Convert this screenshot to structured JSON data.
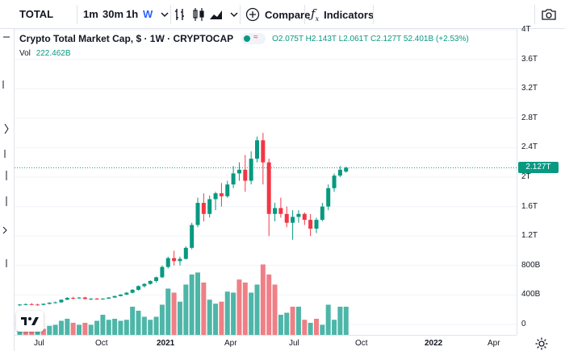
{
  "toolbar": {
    "symbol": "TOTAL",
    "intervals": [
      "1m",
      "30m",
      "1h",
      "W"
    ],
    "active_interval": "W",
    "compare_label": "Compare",
    "indicators_label": "Indicators"
  },
  "legend": {
    "title": "Crypto Total Market Cap, $ · 1W · CRYPTOCAP",
    "open": "O2.075T",
    "high": "H2.143T",
    "low": "L2.061T",
    "close": "C2.127T",
    "change": "52.401B (+2.53%)",
    "vol_label": "Vol",
    "vol_value": "222.462B"
  },
  "last_price_label": "2.127T",
  "colors": {
    "up": "#26a69a",
    "up_candle": "#089981",
    "down": "#f23645",
    "vol_up": "#4db6a8",
    "vol_down": "#ef7f86",
    "accent": "#2962ff"
  },
  "chart_data": {
    "type": "candlestick",
    "price_axis_ticks": [
      "4T",
      "3.6T",
      "3.2T",
      "2.8T",
      "2.4T",
      "2T",
      "1.6T",
      "1.2T",
      "800B",
      "400B",
      "0"
    ],
    "time_axis_ticks": [
      "Jul",
      "Oct",
      "2021",
      "Apr",
      "Jul",
      "Oct",
      "2022",
      "Apr"
    ],
    "last_price": 2.127,
    "candles": [
      [
        0.265,
        0.275,
        0.25,
        0.27
      ],
      [
        0.27,
        0.285,
        0.26,
        0.275
      ],
      [
        0.275,
        0.29,
        0.265,
        0.27
      ],
      [
        0.27,
        0.28,
        0.255,
        0.265
      ],
      [
        0.265,
        0.285,
        0.26,
        0.28
      ],
      [
        0.28,
        0.3,
        0.27,
        0.295
      ],
      [
        0.295,
        0.31,
        0.285,
        0.3
      ],
      [
        0.3,
        0.34,
        0.295,
        0.335
      ],
      [
        0.335,
        0.37,
        0.33,
        0.36
      ],
      [
        0.36,
        0.375,
        0.34,
        0.355
      ],
      [
        0.355,
        0.37,
        0.345,
        0.365
      ],
      [
        0.365,
        0.375,
        0.34,
        0.345
      ],
      [
        0.345,
        0.355,
        0.33,
        0.35
      ],
      [
        0.35,
        0.36,
        0.335,
        0.34
      ],
      [
        0.34,
        0.355,
        0.335,
        0.35
      ],
      [
        0.35,
        0.37,
        0.345,
        0.365
      ],
      [
        0.365,
        0.39,
        0.36,
        0.385
      ],
      [
        0.385,
        0.41,
        0.38,
        0.405
      ],
      [
        0.405,
        0.44,
        0.4,
        0.43
      ],
      [
        0.43,
        0.48,
        0.42,
        0.47
      ],
      [
        0.47,
        0.53,
        0.46,
        0.52
      ],
      [
        0.52,
        0.56,
        0.5,
        0.55
      ],
      [
        0.55,
        0.6,
        0.54,
        0.59
      ],
      [
        0.59,
        0.65,
        0.57,
        0.64
      ],
      [
        0.64,
        0.8,
        0.63,
        0.78
      ],
      [
        0.78,
        0.92,
        0.76,
        0.9
      ],
      [
        0.9,
        1.0,
        0.8,
        0.86
      ],
      [
        0.86,
        0.92,
        0.8,
        0.89
      ],
      [
        0.89,
        1.06,
        0.88,
        1.04
      ],
      [
        1.04,
        1.38,
        1.02,
        1.35
      ],
      [
        1.35,
        1.72,
        1.32,
        1.65
      ],
      [
        1.65,
        1.78,
        1.4,
        1.5
      ],
      [
        1.5,
        1.75,
        1.45,
        1.7
      ],
      [
        1.7,
        1.8,
        1.55,
        1.78
      ],
      [
        1.78,
        1.92,
        1.6,
        1.74
      ],
      [
        1.74,
        1.95,
        1.72,
        1.9
      ],
      [
        1.9,
        2.15,
        1.85,
        2.05
      ],
      [
        2.05,
        2.2,
        1.95,
        2.1
      ],
      [
        2.1,
        2.3,
        1.8,
        1.95
      ],
      [
        1.95,
        2.35,
        1.9,
        2.25
      ],
      [
        2.25,
        2.55,
        2.2,
        2.5
      ],
      [
        2.5,
        2.6,
        1.9,
        2.2
      ],
      [
        2.2,
        2.25,
        1.2,
        1.5
      ],
      [
        1.5,
        1.65,
        1.4,
        1.58
      ],
      [
        1.58,
        1.72,
        1.45,
        1.5
      ],
      [
        1.5,
        1.6,
        1.32,
        1.38
      ],
      [
        1.38,
        1.55,
        1.15,
        1.46
      ],
      [
        1.46,
        1.55,
        1.38,
        1.5
      ],
      [
        1.5,
        1.52,
        1.35,
        1.42
      ],
      [
        1.42,
        1.5,
        1.2,
        1.3
      ],
      [
        1.3,
        1.45,
        1.24,
        1.42
      ],
      [
        1.42,
        1.65,
        1.4,
        1.6
      ],
      [
        1.6,
        1.9,
        1.55,
        1.85
      ],
      [
        1.85,
        2.05,
        1.8,
        2.02
      ],
      [
        2.02,
        2.15,
        2.0,
        2.1
      ],
      [
        2.075,
        2.143,
        2.061,
        2.127
      ]
    ],
    "volumes": [
      [
        0.14,
        1
      ],
      [
        0.1,
        0
      ],
      [
        0.08,
        0
      ],
      [
        0.06,
        1
      ],
      [
        0.06,
        0
      ],
      [
        0.09,
        1
      ],
      [
        0.1,
        1
      ],
      [
        0.14,
        1
      ],
      [
        0.16,
        1
      ],
      [
        0.12,
        0
      ],
      [
        0.1,
        1
      ],
      [
        0.12,
        0
      ],
      [
        0.1,
        1
      ],
      [
        0.14,
        1
      ],
      [
        0.2,
        1
      ],
      [
        0.15,
        1
      ],
      [
        0.16,
        1
      ],
      [
        0.14,
        1
      ],
      [
        0.15,
        1
      ],
      [
        0.28,
        1
      ],
      [
        0.24,
        1
      ],
      [
        0.18,
        1
      ],
      [
        0.15,
        1
      ],
      [
        0.18,
        1
      ],
      [
        0.3,
        1
      ],
      [
        0.46,
        1
      ],
      [
        0.42,
        0
      ],
      [
        0.33,
        1
      ],
      [
        0.5,
        1
      ],
      [
        0.6,
        1
      ],
      [
        0.62,
        1
      ],
      [
        0.52,
        0
      ],
      [
        0.35,
        1
      ],
      [
        0.31,
        1
      ],
      [
        0.33,
        0
      ],
      [
        0.43,
        1
      ],
      [
        0.42,
        1
      ],
      [
        0.55,
        0
      ],
      [
        0.52,
        0
      ],
      [
        0.42,
        1
      ],
      [
        0.5,
        1
      ],
      [
        0.7,
        0
      ],
      [
        0.6,
        0
      ],
      [
        0.5,
        0
      ],
      [
        0.2,
        1
      ],
      [
        0.22,
        1
      ],
      [
        0.28,
        0
      ],
      [
        0.28,
        1
      ],
      [
        0.15,
        0
      ],
      [
        0.12,
        1
      ],
      [
        0.16,
        0
      ],
      [
        0.1,
        1
      ],
      [
        0.3,
        1
      ],
      [
        0.15,
        1
      ],
      [
        0.28,
        1
      ],
      [
        0.28,
        1
      ]
    ]
  }
}
